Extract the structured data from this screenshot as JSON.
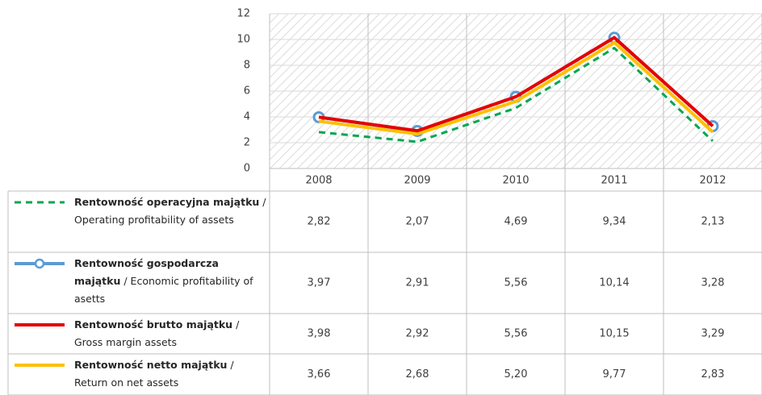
{
  "chart_data": {
    "type": "line",
    "categories": [
      "2008",
      "2009",
      "2010",
      "2011",
      "2012"
    ],
    "ylim": [
      0,
      12
    ],
    "yticks": [
      0,
      2,
      4,
      6,
      8,
      10,
      12
    ],
    "grid": true,
    "hatched_background": true,
    "series": [
      {
        "name": "Rentowność operacyjna majątku",
        "name_en": "/ Operating profitability of assets",
        "color": "#00a651",
        "dashed": true,
        "marker": "none",
        "values": [
          2.82,
          2.07,
          4.69,
          9.34,
          2.13
        ],
        "value_labels": [
          "2,82",
          "2,07",
          "4,69",
          "9,34",
          "2,13"
        ]
      },
      {
        "name": "Rentowność gospodarcza majątku",
        "name_en": "/ Economic profitability of asetts",
        "color": "#5b9bd5",
        "dashed": false,
        "marker": "circle",
        "values": [
          3.97,
          2.91,
          5.56,
          10.14,
          3.28
        ],
        "value_labels": [
          "3,97",
          "2,91",
          "5,56",
          "10,14",
          "3,28"
        ]
      },
      {
        "name": "Rentowność brutto majątku",
        "name_en": "/ Gross margin assets",
        "color": "#e60000",
        "dashed": false,
        "marker": "none",
        "values": [
          3.98,
          2.92,
          5.56,
          10.15,
          3.29
        ],
        "value_labels": [
          "3,98",
          "2,92",
          "5,56",
          "10,15",
          "3,29"
        ]
      },
      {
        "name": "Rentowność netto majątku",
        "name_en": "/ Return on net assets",
        "color": "#ffc000",
        "dashed": false,
        "marker": "none",
        "values": [
          3.66,
          2.68,
          5.2,
          9.77,
          2.83
        ],
        "value_labels": [
          "3,66",
          "2,68",
          "5,20",
          "9,77",
          "2,83"
        ]
      }
    ]
  }
}
